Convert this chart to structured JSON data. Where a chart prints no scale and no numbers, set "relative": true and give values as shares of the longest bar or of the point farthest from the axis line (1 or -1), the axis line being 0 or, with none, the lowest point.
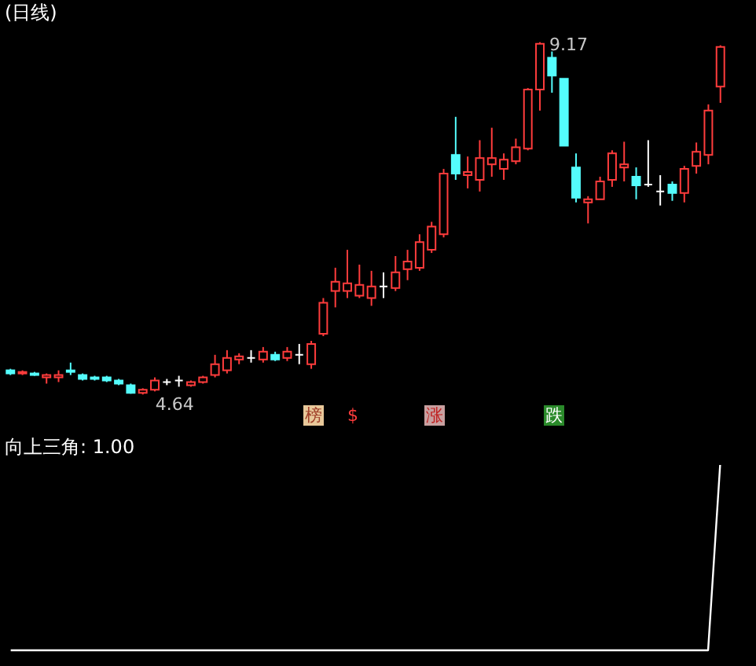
{
  "chart_data": [
    {
      "type": "candlestick",
      "title": "(日线)",
      "categories": [
        null,
        null,
        null,
        null,
        null,
        null,
        null,
        null,
        null,
        null,
        null,
        null,
        null,
        null,
        null,
        null,
        null,
        null,
        null,
        null,
        null,
        null,
        null,
        null,
        null,
        null,
        null,
        null,
        null,
        null,
        null,
        null,
        null,
        null,
        null,
        null,
        null,
        null,
        null,
        null,
        null,
        null,
        null,
        null,
        null,
        null,
        null,
        null,
        null,
        null,
        null,
        null,
        null,
        null,
        null,
        null,
        null,
        null,
        null,
        null
      ],
      "ohlc": [
        [
          4.95,
          4.97,
          4.89,
          4.91
        ],
        [
          4.91,
          4.95,
          4.89,
          4.93
        ],
        [
          4.91,
          4.93,
          4.88,
          4.89
        ],
        [
          4.86,
          4.91,
          4.78,
          4.89
        ],
        [
          4.86,
          4.95,
          4.8,
          4.89
        ],
        [
          4.95,
          5.05,
          4.89,
          4.93
        ],
        [
          4.89,
          4.91,
          4.82,
          4.84
        ],
        [
          4.86,
          4.88,
          4.82,
          4.84
        ],
        [
          4.86,
          4.88,
          4.8,
          4.82
        ],
        [
          4.82,
          4.84,
          4.76,
          4.78
        ],
        [
          4.76,
          4.78,
          4.65,
          4.66
        ],
        [
          4.66,
          4.72,
          4.64,
          4.7
        ],
        [
          4.7,
          4.86,
          4.68,
          4.82
        ],
        [
          4.8,
          4.84,
          4.76,
          4.8
        ],
        [
          4.82,
          4.88,
          4.74,
          4.82
        ],
        [
          4.76,
          4.82,
          4.74,
          4.8
        ],
        [
          4.8,
          4.88,
          4.78,
          4.86
        ],
        [
          4.89,
          5.15,
          4.86,
          5.03
        ],
        [
          4.95,
          5.21,
          4.91,
          5.11
        ],
        [
          5.09,
          5.17,
          5.03,
          5.13
        ],
        [
          5.11,
          5.21,
          5.05,
          5.11
        ],
        [
          5.09,
          5.25,
          5.05,
          5.19
        ],
        [
          5.15,
          5.19,
          5.07,
          5.09
        ],
        [
          5.11,
          5.25,
          5.07,
          5.19
        ],
        [
          5.15,
          5.29,
          5.03,
          5.15
        ],
        [
          5.03,
          5.33,
          4.97,
          5.29
        ],
        [
          5.42,
          5.88,
          5.39,
          5.82
        ],
        [
          5.97,
          6.27,
          5.76,
          6.09
        ],
        [
          5.97,
          6.5,
          5.88,
          6.07
        ],
        [
          5.91,
          6.31,
          5.88,
          6.05
        ],
        [
          5.88,
          6.23,
          5.78,
          6.03
        ],
        [
          6.03,
          6.21,
          5.88,
          6.03
        ],
        [
          6.01,
          6.42,
          5.97,
          6.21
        ],
        [
          6.25,
          6.5,
          6.11,
          6.35
        ],
        [
          6.27,
          6.7,
          6.23,
          6.6
        ],
        [
          6.5,
          6.86,
          6.46,
          6.8
        ],
        [
          6.7,
          7.54,
          6.66,
          7.48
        ],
        [
          7.72,
          8.21,
          7.4,
          7.48
        ],
        [
          7.46,
          7.7,
          7.29,
          7.5
        ],
        [
          7.4,
          7.91,
          7.25,
          7.68
        ],
        [
          7.6,
          8.07,
          7.44,
          7.68
        ],
        [
          7.54,
          7.74,
          7.4,
          7.66
        ],
        [
          7.64,
          7.93,
          7.6,
          7.82
        ],
        [
          7.8,
          8.58,
          7.78,
          8.56
        ],
        [
          8.56,
          9.17,
          8.29,
          9.15
        ],
        [
          8.97,
          9.05,
          8.52,
          8.74
        ],
        [
          8.7,
          8.7,
          7.84,
          7.84
        ],
        [
          7.56,
          7.74,
          7.11,
          7.17
        ],
        [
          7.11,
          7.19,
          6.84,
          7.15
        ],
        [
          7.15,
          7.44,
          7.15,
          7.38
        ],
        [
          7.4,
          7.78,
          7.31,
          7.74
        ],
        [
          7.56,
          7.89,
          7.38,
          7.6
        ],
        [
          7.44,
          7.56,
          7.15,
          7.33
        ],
        [
          7.34,
          7.91,
          7.31,
          7.34
        ],
        [
          7.25,
          7.46,
          7.07,
          7.25
        ],
        [
          7.34,
          7.38,
          7.13,
          7.23
        ],
        [
          7.23,
          7.58,
          7.11,
          7.54
        ],
        [
          7.58,
          7.88,
          7.48,
          7.76
        ],
        [
          7.72,
          8.37,
          7.6,
          8.29
        ],
        [
          8.6,
          9.13,
          8.39,
          9.11
        ]
      ],
      "annotations": [
        "9.17",
        "4.64",
        "榜",
        "$",
        "涨",
        "跌"
      ]
    },
    {
      "type": "line",
      "title": "向上三角: 1.00",
      "relative": true,
      "categories": [
        null,
        null,
        null,
        null,
        null,
        null,
        null,
        null,
        null,
        null,
        null,
        null,
        null,
        null,
        null,
        null,
        null,
        null,
        null,
        null,
        null,
        null,
        null,
        null,
        null,
        null,
        null,
        null,
        null,
        null,
        null,
        null,
        null,
        null,
        null,
        null,
        null,
        null,
        null,
        null,
        null,
        null,
        null,
        null,
        null,
        null,
        null,
        null,
        null,
        null,
        null,
        null,
        null,
        null,
        null,
        null,
        null,
        null,
        null,
        null
      ],
      "series": [
        {
          "color": "#ffffff",
          "values": [
            0,
            0,
            0,
            0,
            0,
            0,
            0,
            0,
            0,
            0,
            0,
            0,
            0,
            0,
            0,
            0,
            0,
            0,
            0,
            0,
            0,
            0,
            0,
            0,
            0,
            0,
            0,
            0,
            0,
            0,
            0,
            0,
            0,
            0,
            0,
            0,
            0,
            0,
            0,
            0,
            0,
            0,
            0,
            0,
            0,
            0,
            0,
            0,
            0,
            0,
            0,
            0,
            0,
            0,
            0,
            0,
            0,
            0,
            0,
            1
          ]
        }
      ]
    }
  ]
}
